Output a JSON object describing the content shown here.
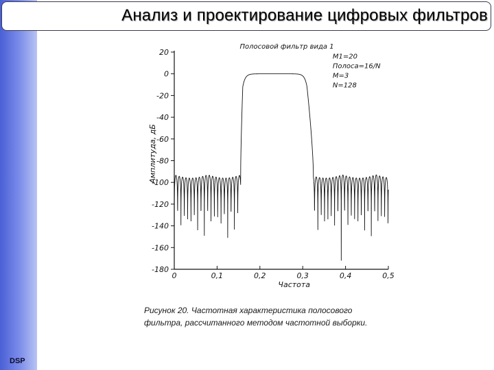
{
  "slide": {
    "title": "Анализ и проектирование цифровых фильтров",
    "sidebar_label": "DSP",
    "caption_line1": "Рисунок 20. Частотная   характеристика   полосового",
    "caption_line2": "фильтра, рассчитанного методом частотной выборки."
  },
  "colors": {
    "sidebar_dark": "#4a5fd6",
    "sidebar_light": "#b9c3f3",
    "plot_line": "#111111"
  },
  "chart_data": {
    "type": "line",
    "title": "Полосовой  фильтр  вида 1",
    "xlabel": "Частота",
    "ylabel": "Амплитуда, дБ",
    "xlim": [
      0,
      0.5
    ],
    "ylim": [
      -180,
      20
    ],
    "xticks": [
      0,
      0.1,
      0.2,
      0.3,
      0.4,
      0.5
    ],
    "xtick_labels": [
      "0",
      "0,1",
      "0,2",
      "0,3",
      "0,4",
      "0,5"
    ],
    "yticks": [
      20,
      0,
      -20,
      -40,
      -60,
      -80,
      -100,
      -120,
      -140,
      -160,
      -180
    ],
    "ytick_labels": [
      "20",
      "0",
      "-20",
      "-40",
      "-60",
      "-80",
      "-100",
      "-120",
      "-140",
      "-160",
      "-180"
    ],
    "annotation": [
      "M1=20",
      "Полоса=16/N",
      "M=3",
      "N=128"
    ],
    "grid": false,
    "passband": [
      0.16,
      0.31
    ],
    "passband_level": 0,
    "stopband_peak": -93,
    "stopband_edges": [
      0.155,
      0.325
    ],
    "null_spacing": 0.0078,
    "series": [
      {
        "values_description_hidden": true,
        "x": [
          0,
          0.155,
          0.16,
          0.17,
          0.3,
          0.31,
          0.325,
          0.5
        ],
        "y": [
          -100,
          -95,
          -10,
          0,
          0,
          -10,
          -95,
          -100
        ]
      }
    ]
  }
}
